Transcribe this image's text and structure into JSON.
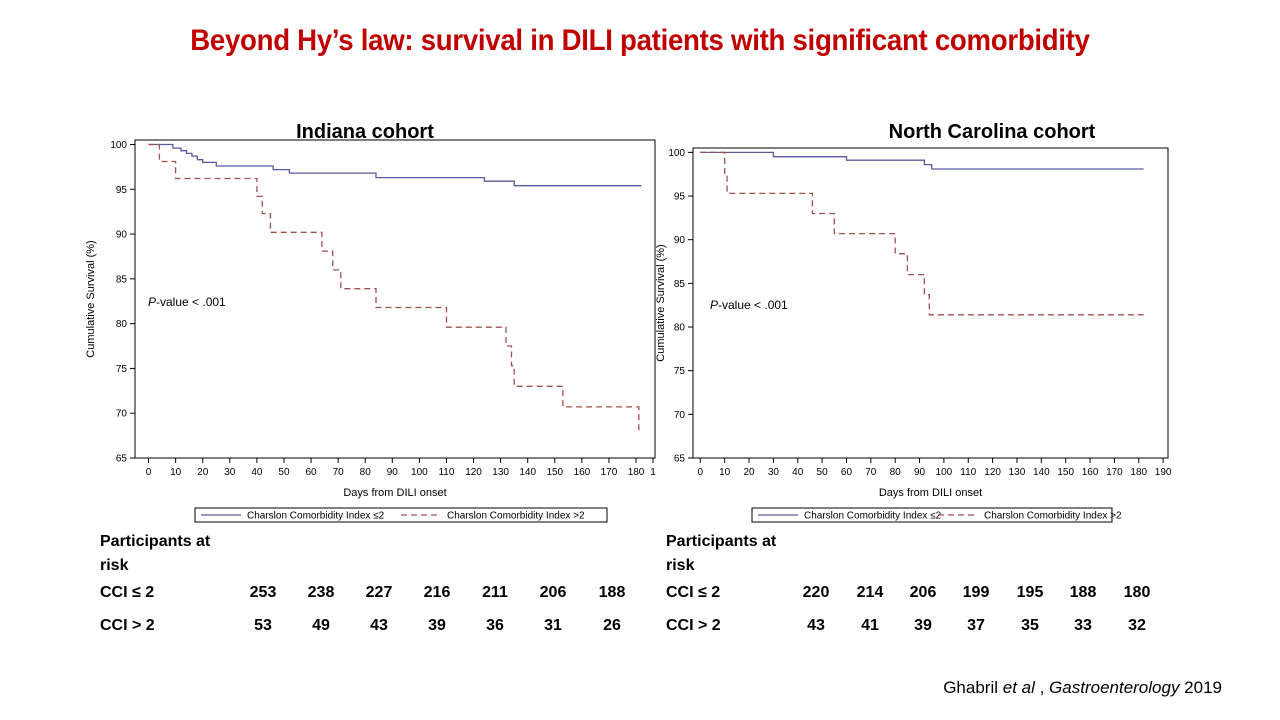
{
  "slide": {
    "title": "Beyond Hy’s law: survival in DILI patients with significant comorbidity"
  },
  "citation": {
    "author": "Ghabril ",
    "etal": "et al",
    "sep": " , ",
    "journal": "Gastroenterology",
    "year": " 2019"
  },
  "colors": {
    "title": "#c00000",
    "series_low": "#5a5aa0",
    "series_high": "#a05050"
  },
  "chart_data": [
    {
      "type": "line",
      "title": "Indiana cohort",
      "xlabel": "Days from DILI onset",
      "ylabel": "Cumulative Survival (%)",
      "annotation": {
        "italic": "P",
        "rest": "-value < .001"
      },
      "xlim": [
        -5,
        187
      ],
      "ylim": [
        65,
        100.5
      ],
      "xticks": [
        0,
        10,
        20,
        30,
        40,
        50,
        60,
        70,
        80,
        90,
        100,
        110,
        120,
        130,
        140,
        150,
        160,
        170,
        180
      ],
      "xtick_labels": [
        "0",
        "10",
        "20",
        "30",
        "40",
        "50",
        "60",
        "70",
        "80",
        "90",
        "100",
        "110",
        "120",
        "130",
        "140",
        "150",
        "160",
        "170",
        "180"
      ],
      "truncated_tick_label": "1",
      "yticks": [
        65,
        70,
        75,
        80,
        85,
        90,
        95,
        100
      ],
      "grid": false,
      "legend_position": "bottom",
      "legend": [
        "Charslon Comorbidity Index ≤2",
        "Charslon Comorbidity Index >2"
      ],
      "series": [
        {
          "name": "Charslon Comorbidity Index ≤2",
          "style": "solid",
          "x": [
            0,
            9,
            12,
            14,
            16,
            18,
            20,
            25,
            46,
            52,
            84,
            124,
            135,
            182
          ],
          "y": [
            100,
            99.6,
            99.3,
            99.0,
            98.7,
            98.3,
            98.0,
            97.6,
            97.2,
            96.8,
            96.3,
            95.9,
            95.4,
            95.4
          ]
        },
        {
          "name": "Charslon Comorbidity Index >2",
          "style": "dashed",
          "x": [
            0,
            4,
            10,
            40,
            42,
            45,
            64,
            68,
            71,
            84,
            110,
            132,
            134,
            135,
            153,
            181,
            182
          ],
          "y": [
            100,
            98.1,
            96.2,
            94.2,
            92.3,
            90.2,
            88.1,
            86.0,
            83.9,
            81.8,
            79.6,
            77.5,
            75.3,
            73.0,
            70.7,
            68.0,
            68.0
          ]
        }
      ]
    },
    {
      "type": "line",
      "title": "North Carolina cohort",
      "xlabel": "Days from DILI onset",
      "ylabel": "Cumulative Survival (%)",
      "annotation": {
        "italic": "P",
        "rest": "-value < .001"
      },
      "xlim": [
        -3,
        192
      ],
      "ylim": [
        65,
        100.5
      ],
      "xticks": [
        0,
        10,
        20,
        30,
        40,
        50,
        60,
        70,
        80,
        90,
        100,
        110,
        120,
        130,
        140,
        150,
        160,
        170,
        180,
        190
      ],
      "xtick_labels": [
        "0",
        "10",
        "20",
        "30",
        "40",
        "50",
        "60",
        "70",
        "80",
        "90",
        "100",
        "110",
        "120",
        "130",
        "140",
        "150",
        "160",
        "170",
        "180",
        "190"
      ],
      "yticks": [
        65,
        70,
        75,
        80,
        85,
        90,
        95,
        100
      ],
      "grid": false,
      "legend_position": "bottom",
      "legend": [
        "Charslon Comorbidity Index ≤2",
        "Charslon Comorbidity Index >2"
      ],
      "series": [
        {
          "name": "Charslon Comorbidity Index ≤2",
          "style": "solid",
          "x": [
            0,
            30,
            60,
            92,
            95,
            182
          ],
          "y": [
            100,
            99.5,
            99.1,
            98.6,
            98.1,
            98.1
          ]
        },
        {
          "name": "Charslon Comorbidity Index >2",
          "style": "dashed",
          "x": [
            0,
            10,
            11,
            46,
            55,
            80,
            85,
            92,
            94,
            95,
            182
          ],
          "y": [
            100,
            97.6,
            95.3,
            93.0,
            90.7,
            88.4,
            86.0,
            83.7,
            81.4,
            81.4,
            81.4
          ]
        }
      ]
    }
  ],
  "risk_tables": [
    {
      "header": "Participants at risk",
      "rows": [
        {
          "label": "CCI ≤ 2",
          "values": [
            "253",
            "238",
            "227",
            "216",
            "211",
            "206",
            "188"
          ]
        },
        {
          "label": "CCI > 2",
          "values": [
            "53",
            "49",
            "43",
            "39",
            "36",
            "31",
            "26"
          ]
        }
      ]
    },
    {
      "header": "Participants at risk",
      "rows": [
        {
          "label": "CCI ≤ 2",
          "values": [
            "220",
            "214",
            "206",
            "199",
            "195",
            "188",
            "180"
          ]
        },
        {
          "label": "CCI > 2",
          "values": [
            "43",
            "41",
            "39",
            "37",
            "35",
            "33",
            "32"
          ]
        }
      ]
    }
  ]
}
